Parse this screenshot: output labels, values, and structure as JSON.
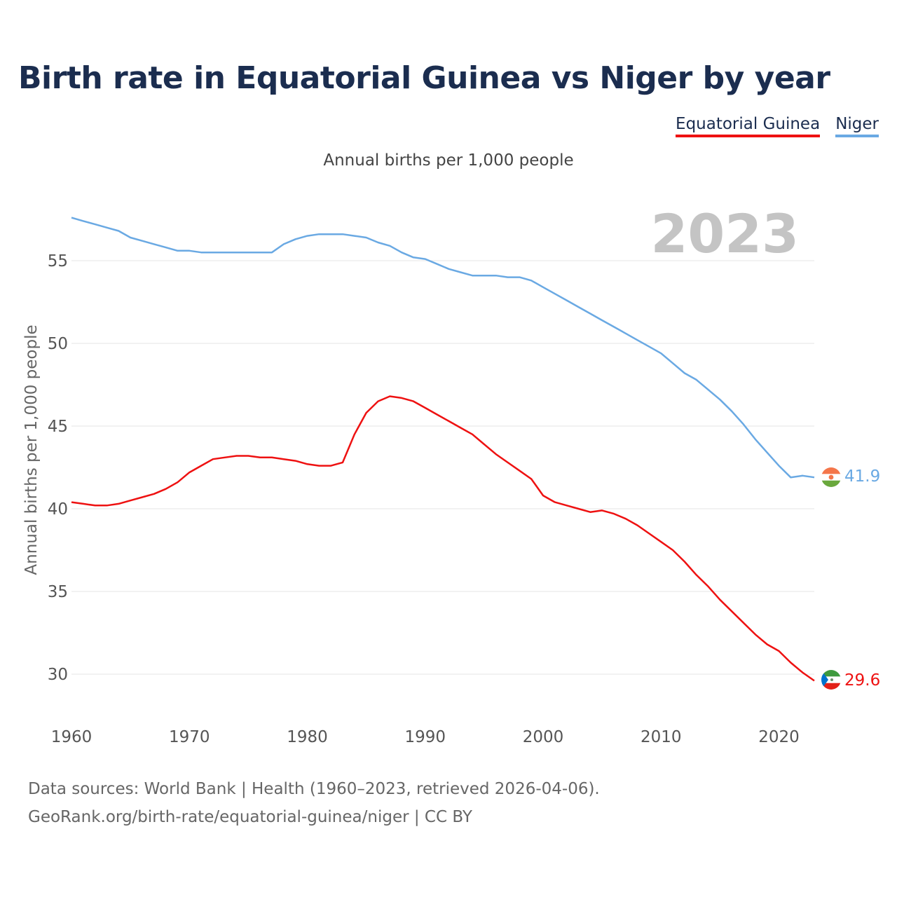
{
  "header": {
    "title": "Birth rate in Equatorial Guinea vs Niger by year",
    "subtitle": "Annual births per 1,000 people"
  },
  "legend": {
    "items": [
      {
        "label": "Equatorial Guinea",
        "color": "#ee1111"
      },
      {
        "label": "Niger",
        "color": "#6aa9e3"
      }
    ]
  },
  "chart_data": {
    "type": "line",
    "title": "Birth rate in Equatorial Guinea vs Niger by year",
    "subtitle": "Annual births per 1,000 people",
    "xlabel": "",
    "ylabel": "Annual births per 1,000 people",
    "year_watermark": "2023",
    "xlim": [
      1960,
      2023
    ],
    "ylim": [
      28,
      58
    ],
    "xticks": [
      1960,
      1970,
      1980,
      1990,
      2000,
      2010,
      2020
    ],
    "yticks": [
      30,
      35,
      40,
      45,
      50,
      55
    ],
    "grid": true,
    "legend_position": "top-right",
    "x": [
      1960,
      1961,
      1962,
      1963,
      1964,
      1965,
      1966,
      1967,
      1968,
      1969,
      1970,
      1971,
      1972,
      1973,
      1974,
      1975,
      1976,
      1977,
      1978,
      1979,
      1980,
      1981,
      1982,
      1983,
      1984,
      1985,
      1986,
      1987,
      1988,
      1989,
      1990,
      1991,
      1992,
      1993,
      1994,
      1995,
      1996,
      1997,
      1998,
      1999,
      2000,
      2001,
      2002,
      2003,
      2004,
      2005,
      2006,
      2007,
      2008,
      2009,
      2010,
      2011,
      2012,
      2013,
      2014,
      2015,
      2016,
      2017,
      2018,
      2019,
      2020,
      2021,
      2022,
      2023
    ],
    "series": [
      {
        "name": "Equatorial Guinea",
        "color": "#ee1111",
        "end_label": "29.6",
        "values": [
          40.4,
          40.3,
          40.2,
          40.2,
          40.3,
          40.5,
          40.7,
          40.9,
          41.2,
          41.6,
          42.2,
          42.6,
          43.0,
          43.1,
          43.2,
          43.2,
          43.1,
          43.1,
          43.0,
          42.9,
          42.7,
          42.6,
          42.6,
          42.8,
          44.5,
          45.8,
          46.5,
          46.8,
          46.7,
          46.5,
          46.1,
          45.7,
          45.3,
          44.9,
          44.5,
          43.9,
          43.3,
          42.8,
          42.3,
          41.8,
          40.8,
          40.4,
          40.2,
          40.0,
          39.8,
          39.9,
          39.7,
          39.4,
          39.0,
          38.5,
          38.0,
          37.5,
          36.8,
          36.0,
          35.3,
          34.5,
          33.8,
          33.1,
          32.4,
          31.8,
          31.4,
          30.7,
          30.1,
          29.6
        ]
      },
      {
        "name": "Niger",
        "color": "#6aa9e3",
        "end_label": "41.9",
        "values": [
          57.6,
          57.4,
          57.2,
          57.0,
          56.8,
          56.4,
          56.2,
          56.0,
          55.8,
          55.6,
          55.6,
          55.5,
          55.5,
          55.5,
          55.5,
          55.5,
          55.5,
          55.5,
          56.0,
          56.3,
          56.5,
          56.6,
          56.6,
          56.6,
          56.5,
          56.4,
          56.1,
          55.9,
          55.5,
          55.2,
          55.1,
          54.8,
          54.5,
          54.3,
          54.1,
          54.1,
          54.1,
          54.0,
          54.0,
          53.8,
          53.4,
          53.0,
          52.6,
          52.2,
          51.8,
          51.4,
          51.0,
          50.6,
          50.2,
          49.8,
          49.4,
          48.8,
          48.2,
          47.8,
          47.2,
          46.6,
          45.9,
          45.1,
          44.2,
          43.4,
          42.6,
          41.9,
          42.0,
          41.9
        ]
      }
    ]
  },
  "footer": {
    "source_line1": "Data sources: World Bank | Health (1960–2023, retrieved 2026-04-06).",
    "source_line2": "GeoRank.org/birth-rate/equatorial-guinea/niger | CC BY"
  },
  "flags": {
    "equatorial_guinea": "equatorial-guinea-flag-icon",
    "niger": "niger-flag-icon"
  }
}
